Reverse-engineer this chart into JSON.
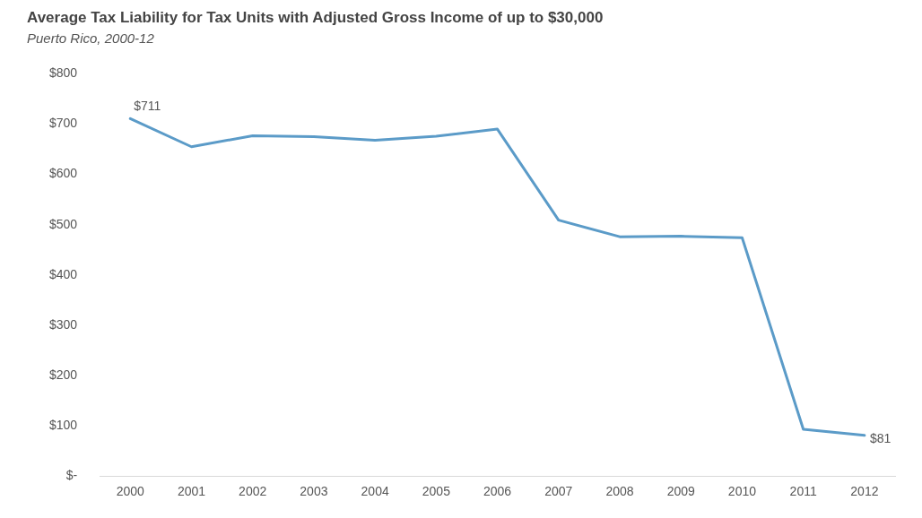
{
  "chart_data": {
    "type": "line",
    "title": "Average Tax Liability for Tax Units with Adjusted Gross Income of up to $30,000",
    "subtitle": "Puerto Rico, 2000-12",
    "categories": [
      "2000",
      "2001",
      "2002",
      "2003",
      "2004",
      "2005",
      "2006",
      "2007",
      "2008",
      "2009",
      "2010",
      "2011",
      "2012"
    ],
    "series": [
      {
        "color": "#5b9bc8",
        "values": [
          711,
          655,
          677,
          675,
          668,
          676,
          690,
          509,
          476,
          477,
          474,
          93,
          81
        ],
        "value_labels": [
          "$711",
          null,
          null,
          null,
          null,
          null,
          null,
          null,
          null,
          null,
          null,
          null,
          "$81"
        ]
      }
    ],
    "ylim": [
      0,
      800
    ],
    "yticks": [
      {
        "value": 0,
        "label": "$-"
      },
      {
        "value": 100,
        "label": "$100"
      },
      {
        "value": 200,
        "label": "$200"
      },
      {
        "value": 300,
        "label": "$300"
      },
      {
        "value": 400,
        "label": "$400"
      },
      {
        "value": 500,
        "label": "$500"
      },
      {
        "value": 600,
        "label": "$600"
      },
      {
        "value": 700,
        "label": "$700"
      },
      {
        "value": 800,
        "label": "$800"
      }
    ],
    "grid": false,
    "legend": false,
    "marker": "none",
    "line_style": "solid"
  }
}
